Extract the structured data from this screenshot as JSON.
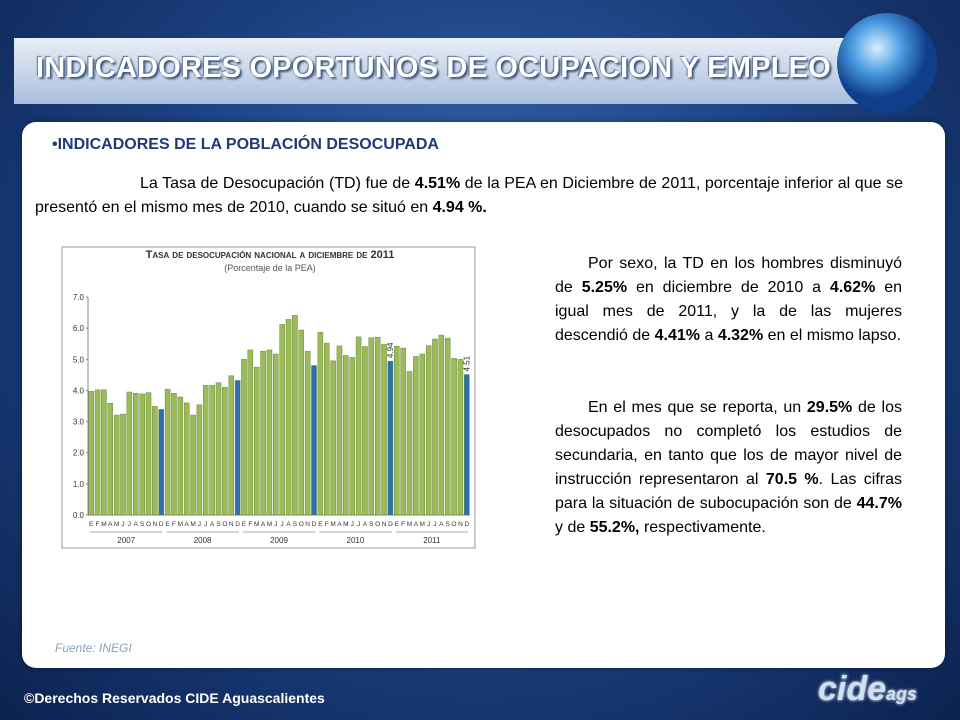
{
  "header": {
    "title": "INDICADORES OPORTUNOS DE OCUPACION Y EMPLEO"
  },
  "section": {
    "heading": "INDICADORES DE LA POBLACIÓN DESOCUPADA"
  },
  "intro": [
    {
      "text": "La Tasa de Desocupación (TD) fue de ",
      "bold": false
    },
    {
      "text": "4.51%",
      "bold": true
    },
    {
      "text": " de la PEA en Diciembre de 2011, porcentaje inferior al que se presentó en el mismo mes de 2010, cuando se situó en ",
      "bold": false
    },
    {
      "text": "4.94 %.",
      "bold": true
    }
  ],
  "paragraphs": [
    [
      {
        "text": "Por sexo, la TD en los hombres disminuyó de ",
        "bold": false
      },
      {
        "text": "5.25%",
        "bold": true
      },
      {
        "text": " en diciembre de 2010 a ",
        "bold": false
      },
      {
        "text": "4.62%",
        "bold": true
      },
      {
        "text": " en igual mes de 2011, y la de las mujeres descendió de ",
        "bold": false
      },
      {
        "text": "4.41%",
        "bold": true
      },
      {
        "text": " a ",
        "bold": false
      },
      {
        "text": "4.32%",
        "bold": true
      },
      {
        "text": " en el mismo lapso.",
        "bold": false
      }
    ],
    [
      {
        "text": "En el mes que se reporta, un ",
        "bold": false
      },
      {
        "text": "29.5%",
        "bold": true
      },
      {
        "text": " de los desocupados no completó los estudios de secundaria, en tanto que los de mayor nivel de instrucción representaron al ",
        "bold": false
      },
      {
        "text": "70.5 %",
        "bold": true
      },
      {
        "text": ". Las cifras para la situación de subocupación son de ",
        "bold": false
      },
      {
        "text": "44.7%",
        "bold": true
      },
      {
        "text": " y de ",
        "bold": false
      },
      {
        "text": "55.2%,",
        "bold": true
      },
      {
        "text": " respectivamente.",
        "bold": false
      }
    ]
  ],
  "source": "Fuente: INEGI",
  "footer": {
    "copyright": "©Derechos Reservados CIDE Aguascalientes",
    "logo": "cide",
    "logo_suffix": "ags"
  },
  "chart_data": {
    "type": "bar",
    "title": "Tasa de desocupación nacional a diciembre de 2011",
    "subtitle": "(Porcentaje de la PEA)",
    "categories": [
      "E",
      "F",
      "M",
      "A",
      "M",
      "J",
      "J",
      "A",
      "S",
      "O",
      "N",
      "D",
      "E",
      "F",
      "M",
      "A",
      "M",
      "J",
      "J",
      "A",
      "S",
      "O",
      "N",
      "D",
      "E",
      "F",
      "M",
      "A",
      "M",
      "J",
      "J",
      "A",
      "S",
      "O",
      "N",
      "D",
      "E",
      "F",
      "M",
      "A",
      "M",
      "J",
      "J",
      "A",
      "S",
      "O",
      "N",
      "D",
      "E",
      "F",
      "M",
      "A",
      "M",
      "J",
      "J",
      "A",
      "S",
      "O",
      "N",
      "D"
    ],
    "years": [
      "2007",
      "2008",
      "2009",
      "2010",
      "2011"
    ],
    "values": [
      3.97,
      4.02,
      4.02,
      3.59,
      3.21,
      3.24,
      3.95,
      3.91,
      3.89,
      3.93,
      3.49,
      3.39,
      4.04,
      3.91,
      3.79,
      3.6,
      3.21,
      3.54,
      4.16,
      4.17,
      4.25,
      4.1,
      4.47,
      4.32,
      5.0,
      5.3,
      4.75,
      5.26,
      5.3,
      5.17,
      6.12,
      6.28,
      6.41,
      5.94,
      5.26,
      4.8,
      5.87,
      5.52,
      4.95,
      5.43,
      5.12,
      5.06,
      5.72,
      5.41,
      5.69,
      5.71,
      5.48,
      4.94,
      5.42,
      5.36,
      4.61,
      5.09,
      5.17,
      5.44,
      5.65,
      5.78,
      5.68,
      5.03,
      5.0,
      4.51
    ],
    "value_labels": [
      null,
      null,
      null,
      null,
      null,
      null,
      null,
      null,
      null,
      null,
      null,
      null,
      null,
      null,
      null,
      null,
      null,
      null,
      null,
      null,
      null,
      null,
      null,
      null,
      null,
      null,
      null,
      null,
      null,
      null,
      null,
      null,
      null,
      null,
      null,
      null,
      null,
      null,
      null,
      null,
      null,
      null,
      null,
      null,
      null,
      null,
      null,
      "4.94",
      null,
      null,
      null,
      null,
      null,
      null,
      null,
      null,
      null,
      null,
      null,
      "4.51"
    ],
    "colors": [
      "#9bbb59",
      "#9bbb59",
      "#9bbb59",
      "#9bbb59",
      "#9bbb59",
      "#9bbb59",
      "#9bbb59",
      "#9bbb59",
      "#9bbb59",
      "#9bbb59",
      "#9bbb59",
      "#2f6fb0",
      "#9bbb59",
      "#9bbb59",
      "#9bbb59",
      "#9bbb59",
      "#9bbb59",
      "#9bbb59",
      "#9bbb59",
      "#9bbb59",
      "#9bbb59",
      "#9bbb59",
      "#9bbb59",
      "#2f6fb0",
      "#9bbb59",
      "#9bbb59",
      "#9bbb59",
      "#9bbb59",
      "#9bbb59",
      "#9bbb59",
      "#9bbb59",
      "#9bbb59",
      "#9bbb59",
      "#9bbb59",
      "#9bbb59",
      "#2f6fb0",
      "#9bbb59",
      "#9bbb59",
      "#9bbb59",
      "#9bbb59",
      "#9bbb59",
      "#9bbb59",
      "#9bbb59",
      "#9bbb59",
      "#9bbb59",
      "#9bbb59",
      "#9bbb59",
      "#2f6fb0",
      "#9bbb59",
      "#9bbb59",
      "#9bbb59",
      "#9bbb59",
      "#9bbb59",
      "#9bbb59",
      "#9bbb59",
      "#9bbb59",
      "#9bbb59",
      "#9bbb59",
      "#9bbb59",
      "#2f6fb0"
    ],
    "ylim": [
      0,
      7
    ],
    "yticks": [
      {
        "value": 0,
        "label": "0.0"
      },
      {
        "value": 1,
        "label": "1.0"
      },
      {
        "value": 2,
        "label": "2.0"
      },
      {
        "value": 3,
        "label": "3.0"
      },
      {
        "value": 4,
        "label": "4.0"
      },
      {
        "value": 5,
        "label": "5.0"
      },
      {
        "value": 6,
        "label": "6.0"
      },
      {
        "value": 7,
        "label": "7.0"
      }
    ],
    "grid": false
  }
}
